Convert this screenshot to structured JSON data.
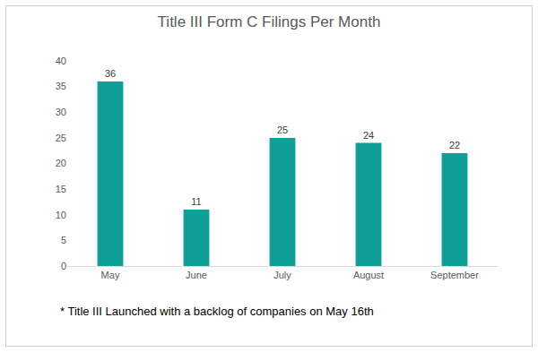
{
  "chart_data": {
    "type": "bar",
    "title": "Title III Form C Filings Per Month",
    "categories": [
      "May",
      "June",
      "July",
      "August",
      "September"
    ],
    "values": [
      36,
      11,
      25,
      24,
      22
    ],
    "color": "#0f9e98",
    "ylim": [
      0,
      40
    ],
    "yticks": [
      0,
      5,
      10,
      15,
      20,
      25,
      30,
      35,
      40
    ],
    "grid": false,
    "data_labels": true,
    "annotations": [
      "* Title III Launched with a backlog of companies on May 16th"
    ]
  }
}
